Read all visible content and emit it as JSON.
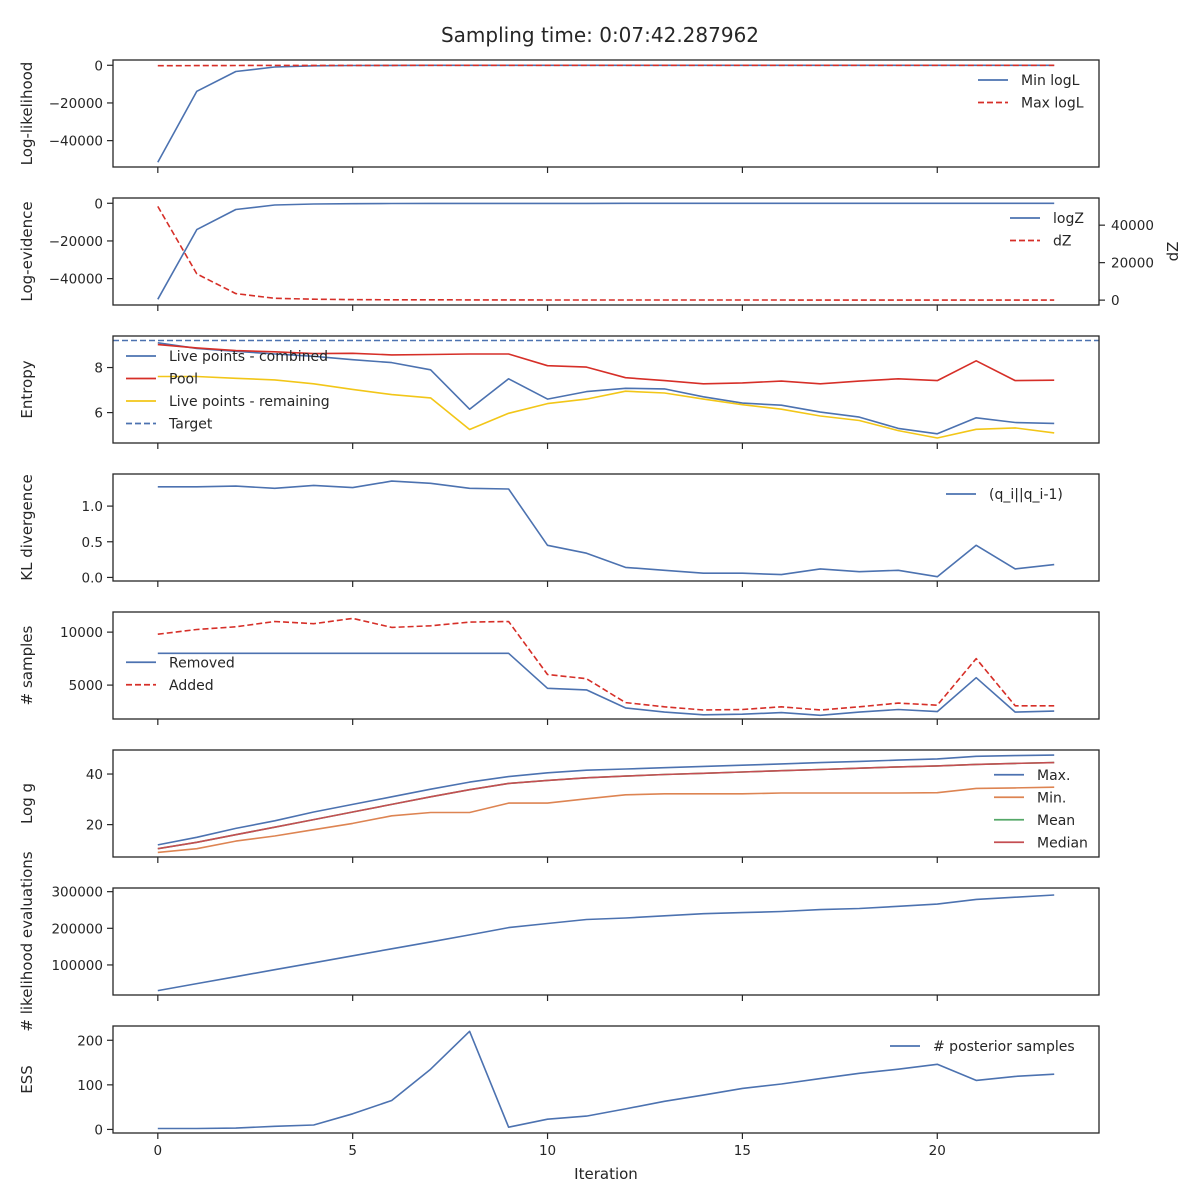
{
  "chart_data": {
    "type": "line",
    "title": "Sampling time: 0:07:42.287962",
    "xlabel": "Iteration",
    "xlim": [
      -1.15,
      24.15
    ],
    "xticks": [
      0,
      5,
      10,
      15,
      20
    ],
    "x": [
      0,
      1,
      2,
      3,
      4,
      5,
      6,
      7,
      8,
      9,
      10,
      11,
      12,
      13,
      14,
      15,
      16,
      17,
      18,
      19,
      20,
      21,
      22,
      23
    ],
    "colors": {
      "blue": "#4c72b0",
      "red": "#d62f28",
      "yellow": "#f2c618",
      "orange": "#dd8452",
      "green": "#55a868",
      "brown": "#c44e52"
    },
    "panels": [
      {
        "id": "loglikelihood",
        "ylabel": "Log-likelihood",
        "ylim": [
          -54000,
          2800
        ],
        "yticks": [
          {
            "v": 0,
            "label": "0"
          },
          {
            "v": -20000,
            "label": "−20000"
          },
          {
            "v": -40000,
            "label": "−40000"
          }
        ],
        "legend": {
          "placement": "upper right",
          "entries": [
            {
              "label": "Min logL",
              "color": "blue",
              "style": "solid"
            },
            {
              "label": "Max logL",
              "color": "red",
              "style": "dashed"
            }
          ]
        },
        "series": [
          {
            "name": "Min logL",
            "color": "blue",
            "style": "solid",
            "values": [
              -51500,
              -13800,
              -3300,
              -900,
              -300,
              -100,
              -50,
              -30,
              -20,
              -15,
              -12,
              -10,
              -9,
              -8,
              -7,
              -6,
              -6,
              -5,
              -5,
              -5,
              -4,
              -4,
              -4,
              -4
            ]
          },
          {
            "name": "Max logL",
            "color": "red",
            "style": "dashed",
            "values": [
              -200,
              -150,
              -100,
              -80,
              -60,
              -50,
              -40,
              -30,
              -25,
              -20,
              -15,
              -12,
              -10,
              -9,
              -8,
              -7,
              -6,
              -6,
              -5,
              -5,
              -5,
              -4,
              -4,
              -4
            ]
          }
        ]
      },
      {
        "id": "logevidence",
        "ylabel": "Log-evidence",
        "y2label": "dZ",
        "ylim": [
          -54000,
          2800
        ],
        "y2lim": [
          -2600,
          54500
        ],
        "yticks": [
          {
            "v": 0,
            "label": "0"
          },
          {
            "v": -20000,
            "label": "−20000"
          },
          {
            "v": -40000,
            "label": "−40000"
          }
        ],
        "y2ticks": [
          {
            "v": 0,
            "label": "0"
          },
          {
            "v": 20000,
            "label": "20000"
          },
          {
            "v": 40000,
            "label": "40000"
          }
        ],
        "legend": {
          "placement": "upper right",
          "entries": [
            {
              "label": "logZ",
              "color": "blue",
              "style": "solid"
            },
            {
              "label": "dZ",
              "color": "red",
              "style": "dashed"
            }
          ]
        },
        "series": [
          {
            "name": "logZ",
            "color": "blue",
            "style": "solid",
            "values": [
              -51000,
              -14000,
              -3300,
              -900,
              -400,
              -200,
              -120,
              -80,
              -60,
              -50,
              -45,
              -40,
              -38,
              -36,
              -35,
              -34,
              -33,
              -33,
              -32,
              -32,
              -32,
              -31,
              -31,
              -31
            ]
          },
          {
            "name": "dZ",
            "color": "red",
            "style": "dashed",
            "axis": "right",
            "values": [
              50000,
              14000,
              3500,
              1000,
              500,
              300,
              200,
              150,
              120,
              100,
              90,
              80,
              70,
              60,
              55,
              50,
              45,
              40,
              40,
              35,
              35,
              30,
              30,
              30
            ]
          }
        ]
      },
      {
        "id": "entropy",
        "ylabel": "Entropy",
        "ylim": [
          4.65,
          9.4
        ],
        "yticks": [
          {
            "v": 6,
            "label": "6"
          },
          {
            "v": 8,
            "label": "8"
          }
        ],
        "hline": {
          "value": 9.2,
          "color": "blue",
          "style": "dashed"
        },
        "legend": {
          "placement": "upper left",
          "entries": [
            {
              "label": "Live points - combined",
              "color": "blue",
              "style": "solid"
            },
            {
              "label": "Pool",
              "color": "red",
              "style": "solid"
            },
            {
              "label": "Live points - remaining",
              "color": "yellow",
              "style": "solid"
            },
            {
              "label": "Target",
              "color": "blue",
              "style": "dashed"
            }
          ]
        },
        "series": [
          {
            "name": "Live points - combined",
            "color": "blue",
            "style": "solid",
            "values": [
              9.1,
              8.85,
              8.72,
              8.6,
              8.5,
              8.35,
              8.22,
              7.9,
              6.15,
              7.5,
              6.6,
              6.93,
              7.08,
              7.05,
              6.7,
              6.42,
              6.33,
              6.02,
              5.8,
              5.3,
              5.06,
              5.77,
              5.56,
              5.52
            ]
          },
          {
            "name": "Pool",
            "color": "red",
            "style": "solid",
            "values": [
              9.02,
              8.87,
              8.75,
              8.7,
              8.62,
              8.63,
              8.56,
              8.58,
              8.6,
              8.6,
              8.08,
              8.02,
              7.55,
              7.42,
              7.28,
              7.32,
              7.4,
              7.28,
              7.4,
              7.5,
              7.42,
              8.3,
              7.42,
              7.44
            ]
          },
          {
            "name": "Live points - remaining",
            "color": "yellow",
            "style": "solid",
            "values": [
              7.6,
              7.6,
              7.52,
              7.45,
              7.28,
              7.03,
              6.8,
              6.65,
              5.25,
              5.97,
              6.4,
              6.6,
              6.95,
              6.87,
              6.6,
              6.35,
              6.15,
              5.85,
              5.65,
              5.2,
              4.87,
              5.26,
              5.32,
              5.1
            ]
          }
        ]
      },
      {
        "id": "kl",
        "ylabel": "KL divergence",
        "ylim": [
          -0.05,
          1.45
        ],
        "yticks": [
          {
            "v": 0,
            "label": "0.0"
          },
          {
            "v": 0.5,
            "label": "0.5"
          },
          {
            "v": 1.0,
            "label": "1.0"
          }
        ],
        "legend": {
          "placement": "upper right",
          "entries": [
            {
              "label": "(q_i||q_i-1)",
              "color": "blue",
              "style": "solid"
            }
          ]
        },
        "series": [
          {
            "name": "(q_i||q_i-1)",
            "color": "blue",
            "style": "solid",
            "values": [
              1.27,
              1.27,
              1.28,
              1.25,
              1.29,
              1.26,
              1.35,
              1.32,
              1.25,
              1.24,
              0.45,
              0.34,
              0.14,
              0.1,
              0.06,
              0.06,
              0.04,
              0.12,
              0.08,
              0.1,
              0.01,
              0.45,
              0.12,
              0.18
            ]
          }
        ]
      },
      {
        "id": "samples",
        "ylabel": "# samples",
        "ylim": [
          1800,
          11900
        ],
        "yticks": [
          {
            "v": 5000,
            "label": "5000"
          },
          {
            "v": 10000,
            "label": "10000"
          }
        ],
        "legend": {
          "placement": "center left",
          "entries": [
            {
              "label": "Removed",
              "color": "blue",
              "style": "solid"
            },
            {
              "label": "Added",
              "color": "red",
              "style": "dashed"
            }
          ]
        },
        "series": [
          {
            "name": "Removed",
            "color": "blue",
            "style": "solid",
            "values": [
              8000,
              8000,
              8000,
              8000,
              8000,
              8000,
              8000,
              8000,
              8000,
              8000,
              4700,
              4550,
              2850,
              2450,
              2200,
              2250,
              2400,
              2150,
              2450,
              2700,
              2500,
              5700,
              2450,
              2550
            ]
          },
          {
            "name": "Added",
            "color": "red",
            "style": "dashed",
            "values": [
              9800,
              10250,
              10500,
              11000,
              10800,
              11300,
              10450,
              10600,
              10950,
              11000,
              6000,
              5600,
              3350,
              2950,
              2650,
              2700,
              2950,
              2650,
              2950,
              3300,
              3100,
              7500,
              3050,
              3050
            ]
          }
        ]
      },
      {
        "id": "logg",
        "ylabel": "Log g",
        "ylim": [
          7.2,
          49.5
        ],
        "yticks": [
          {
            "v": 20,
            "label": "20"
          },
          {
            "v": 40,
            "label": "40"
          }
        ],
        "legend": {
          "placement": "right",
          "entries": [
            {
              "label": "Max.",
              "color": "blue",
              "style": "solid"
            },
            {
              "label": "Min.",
              "color": "orange",
              "style": "solid"
            },
            {
              "label": "Mean",
              "color": "green",
              "style": "solid"
            },
            {
              "label": "Median",
              "color": "brown",
              "style": "solid"
            }
          ]
        },
        "series": [
          {
            "name": "Max.",
            "color": "blue",
            "style": "solid",
            "values": [
              12,
              15,
              18.5,
              21.5,
              25,
              28,
              31,
              34,
              36.8,
              39,
              40.5,
              41.5,
              42,
              42.5,
              43,
              43.5,
              44,
              44.5,
              45,
              45.5,
              46,
              47,
              47.3,
              47.5
            ]
          },
          {
            "name": "Min.",
            "color": "orange",
            "style": "solid",
            "values": [
              9,
              10.5,
              13.5,
              15.5,
              18,
              20.5,
              23.5,
              24.8,
              24.8,
              28.5,
              28.5,
              30.2,
              31.8,
              32.2,
              32.2,
              32.2,
              32.5,
              32.5,
              32.5,
              32.5,
              32.6,
              34.3,
              34.5,
              34.8
            ]
          },
          {
            "name": "Mean",
            "color": "green",
            "style": "solid",
            "values": [
              10.5,
              13,
              16,
              19,
              22,
              25,
              28,
              31,
              33.8,
              36.3,
              37.5,
              38.5,
              39.2,
              39.8,
              40.3,
              40.8,
              41.3,
              41.8,
              42.3,
              42.8,
              43.2,
              43.8,
              44.2,
              44.5
            ]
          },
          {
            "name": "Median",
            "color": "brown",
            "style": "solid",
            "values": [
              10.5,
              13,
              16,
              19,
              22,
              25,
              28,
              31,
              33.8,
              36.3,
              37.5,
              38.5,
              39.2,
              39.8,
              40.3,
              40.8,
              41.3,
              41.8,
              42.3,
              42.8,
              43.2,
              43.8,
              44.2,
              44.5
            ]
          }
        ]
      },
      {
        "id": "likelihood_evals",
        "ylabel": "# likelihood evaluations",
        "ylim": [
          18000,
          310000
        ],
        "yticks": [
          {
            "v": 100000,
            "label": "100000"
          },
          {
            "v": 200000,
            "label": "200000"
          },
          {
            "v": 300000,
            "label": "300000"
          }
        ],
        "series": [
          {
            "name": "",
            "color": "blue",
            "style": "solid",
            "values": [
              30000,
              49000,
              68000,
              87000,
              106000,
              125000,
              144000,
              163000,
              182000,
              202000,
              213000,
              224000,
              228000,
              234000,
              240000,
              243000,
              246000,
              251000,
              254000,
              260000,
              266000,
              279000,
              285000,
              291000
            ]
          }
        ]
      },
      {
        "id": "ess",
        "ylabel": "ESS",
        "ylim": [
          -8,
          232
        ],
        "yticks": [
          {
            "v": 0,
            "label": "0"
          },
          {
            "v": 100,
            "label": "100"
          },
          {
            "v": 200,
            "label": "200"
          }
        ],
        "legend": {
          "placement": "upper right",
          "entries": [
            {
              "label": "# posterior samples",
              "color": "blue",
              "style": "solid"
            }
          ]
        },
        "series": [
          {
            "name": "# posterior samples",
            "color": "blue",
            "style": "solid",
            "values": [
              2,
              2,
              3,
              7,
              10,
              35,
              65,
              135,
              220,
              5,
              23,
              30,
              46,
              63,
              77,
              92,
              102,
              114,
              126,
              135,
              146,
              110,
              119,
              124
            ]
          }
        ]
      }
    ]
  }
}
